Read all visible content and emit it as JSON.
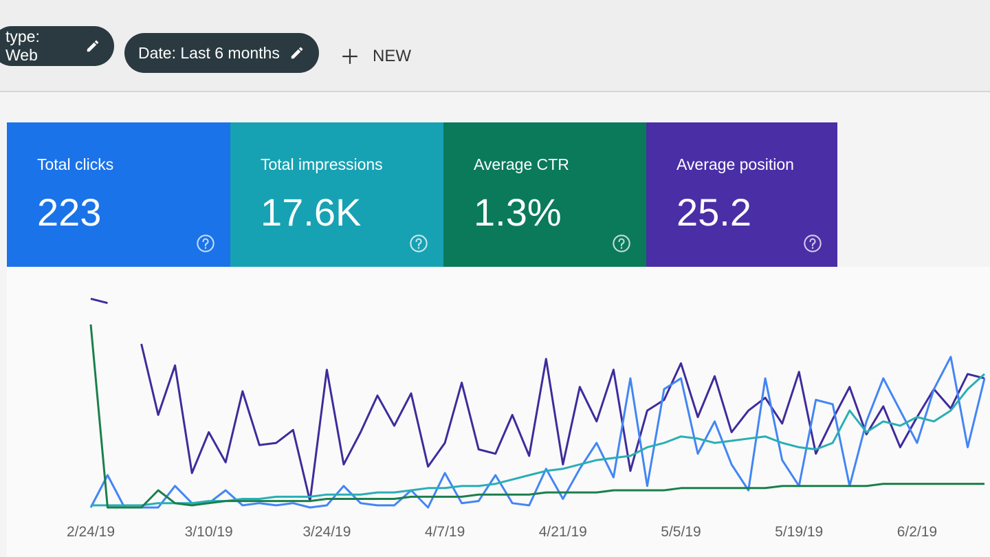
{
  "filters": [
    {
      "label": "type: Web"
    },
    {
      "label": "Date: Last 6 months"
    }
  ],
  "new_button": "NEW",
  "metrics": [
    {
      "label": "Total clicks",
      "value": "223",
      "color": "#1a73e8"
    },
    {
      "label": "Total impressions",
      "value": "17.6K",
      "color": "#17a2b3"
    },
    {
      "label": "Average CTR",
      "value": "1.3%",
      "color": "#0b7a5b"
    },
    {
      "label": "Average position",
      "value": "25.2",
      "color": "#4a2ea6"
    }
  ],
  "chart_data": {
    "type": "line",
    "categories": [
      "2/24/19",
      null,
      null,
      null,
      null,
      null,
      null,
      "3/10/19",
      null,
      null,
      null,
      null,
      null,
      null,
      "3/24/19",
      null,
      null,
      null,
      null,
      null,
      null,
      "4/7/19",
      null,
      null,
      null,
      null,
      null,
      null,
      "4/21/19",
      null,
      null,
      null,
      null,
      null,
      null,
      "5/5/19",
      null,
      null,
      null,
      null,
      null,
      null,
      "5/19/19",
      null,
      null,
      null,
      null,
      null,
      null,
      "6/2/19",
      null,
      null,
      null,
      null
    ],
    "series": [
      {
        "name": "Average position",
        "color": "#3f2b9c",
        "values": [
          97,
          95,
          null,
          76,
          43,
          66,
          16,
          35,
          21,
          54,
          29,
          30,
          36,
          3,
          64,
          20,
          35,
          52,
          38,
          53,
          19,
          30,
          58,
          27,
          25,
          43,
          24,
          69,
          20,
          56,
          40,
          64,
          17,
          45,
          50,
          67,
          42,
          61,
          35,
          45,
          51,
          39,
          63,
          25,
          41,
          56,
          34,
          47,
          28,
          42,
          55,
          46,
          62,
          60
        ]
      },
      {
        "name": "Total clicks",
        "color": "#4285f4",
        "values": [
          0,
          15,
          0,
          0,
          0,
          10,
          2,
          2,
          8,
          1,
          2,
          1,
          2,
          0,
          1,
          10,
          2,
          1,
          1,
          8,
          0,
          16,
          2,
          3,
          15,
          2,
          1,
          18,
          4,
          18,
          30,
          14,
          60,
          10,
          55,
          60,
          25,
          40,
          20,
          8,
          60,
          22,
          10,
          50,
          48,
          10,
          40,
          60,
          45,
          30,
          55,
          70,
          28,
          60
        ]
      },
      {
        "name": "Total impressions",
        "color": "#2aaeb5",
        "values": [
          1,
          1,
          1,
          1,
          2,
          2,
          2,
          3,
          3,
          4,
          4,
          5,
          5,
          5,
          6,
          6,
          6,
          7,
          7,
          8,
          9,
          9,
          10,
          10,
          11,
          13,
          15,
          17,
          18,
          20,
          22,
          23,
          24,
          28,
          30,
          33,
          32,
          30,
          31,
          32,
          33,
          30,
          28,
          27,
          30,
          45,
          35,
          40,
          38,
          42,
          40,
          45,
          55,
          62
        ]
      },
      {
        "name": "Average CTR",
        "color": "#1b7f4c",
        "values": [
          85,
          0,
          0,
          0,
          8,
          2,
          1,
          2,
          3,
          3,
          3,
          3,
          3,
          3,
          4,
          4,
          4,
          4,
          4,
          5,
          5,
          5,
          5,
          6,
          6,
          6,
          6,
          7,
          7,
          7,
          7,
          8,
          8,
          8,
          8,
          9,
          9,
          9,
          9,
          9,
          9,
          10,
          10,
          10,
          10,
          10,
          10,
          11,
          11,
          11,
          11,
          11,
          11,
          11
        ]
      }
    ],
    "ylim": [
      0,
      100
    ]
  }
}
